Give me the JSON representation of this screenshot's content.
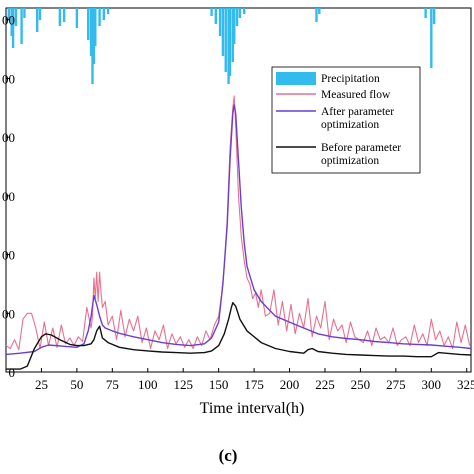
{
  "chart_data": {
    "type": "line",
    "panel_label": "(c)",
    "xlabel": "Time interval(h)",
    "xlim": [
      0,
      328
    ],
    "x_ticks": [
      25,
      50,
      75,
      100,
      125,
      150,
      175,
      200,
      225,
      250,
      275,
      300,
      325
    ],
    "ylim": [
      0,
      620
    ],
    "left_y_ticks": [
      {
        "value": 0,
        "label": "0"
      },
      {
        "value": 100,
        "label": "00"
      },
      {
        "value": 200,
        "label": "00"
      },
      {
        "value": 300,
        "label": "00"
      },
      {
        "value": 400,
        "label": "00"
      },
      {
        "value": 500,
        "label": "00"
      },
      {
        "value": 600,
        "label": "00"
      }
    ],
    "legend": {
      "placement": "upper-right",
      "entries": [
        {
          "series": "precipitation",
          "label": "Precipitation",
          "kind": "patch"
        },
        {
          "series": "measured",
          "label": "Measured flow",
          "kind": "line"
        },
        {
          "series": "after",
          "label": "After parameter optimization",
          "lines": [
            "After parameter",
            "optimization"
          ],
          "kind": "line"
        },
        {
          "series": "before",
          "label": "Before parameter optimization",
          "lines": [
            "Before parameter",
            "optimization"
          ],
          "kind": "line"
        }
      ]
    },
    "precipitation": {
      "name": "Precipitation",
      "color": "#33bbee",
      "note": "bars hang downward from top axis; values in mm (secondary axis, max 40)",
      "max": 40,
      "events": [
        [
          2,
          6
        ],
        [
          4,
          14
        ],
        [
          5,
          20
        ],
        [
          7,
          9
        ],
        [
          11,
          18
        ],
        [
          13,
          5
        ],
        [
          22,
          12
        ],
        [
          24,
          6
        ],
        [
          38,
          9
        ],
        [
          41,
          7
        ],
        [
          50,
          10
        ],
        [
          58,
          16
        ],
        [
          60,
          24
        ],
        [
          61,
          38
        ],
        [
          62,
          28
        ],
        [
          63,
          19
        ],
        [
          66,
          9
        ],
        [
          69,
          6
        ],
        [
          72,
          3
        ],
        [
          145,
          4
        ],
        [
          148,
          8
        ],
        [
          151,
          14
        ],
        [
          153,
          24
        ],
        [
          155,
          32
        ],
        [
          157,
          38
        ],
        [
          158,
          34
        ],
        [
          160,
          27
        ],
        [
          161,
          18
        ],
        [
          163,
          9
        ],
        [
          165,
          5
        ],
        [
          168,
          3
        ],
        [
          219,
          7
        ],
        [
          221,
          3
        ],
        [
          296,
          5
        ],
        [
          300,
          30
        ],
        [
          302,
          8
        ]
      ]
    },
    "series": [
      {
        "name": "Measured flow",
        "key": "measured",
        "color": "#e8708f",
        "x": [
          0,
          3,
          6,
          9,
          12,
          15,
          18,
          21,
          24,
          27,
          30,
          33,
          36,
          39,
          42,
          45,
          48,
          51,
          54,
          57,
          60,
          61,
          62,
          63,
          64,
          65,
          66,
          67,
          68,
          70,
          72,
          75,
          78,
          81,
          84,
          87,
          90,
          93,
          96,
          99,
          102,
          105,
          108,
          111,
          114,
          117,
          120,
          123,
          126,
          129,
          132,
          135,
          138,
          141,
          144,
          147,
          150,
          152,
          154,
          156,
          158,
          160,
          161,
          162,
          163,
          164,
          166,
          168,
          170,
          172,
          174,
          176,
          178,
          180,
          183,
          186,
          189,
          192,
          195,
          198,
          201,
          204,
          207,
          210,
          213,
          216,
          219,
          222,
          225,
          228,
          231,
          234,
          237,
          240,
          243,
          246,
          249,
          252,
          255,
          258,
          261,
          264,
          267,
          270,
          273,
          276,
          279,
          282,
          285,
          288,
          291,
          294,
          297,
          300,
          303,
          306,
          309,
          312,
          315,
          318,
          321,
          324,
          327
        ],
        "values": [
          45,
          40,
          55,
          38,
          90,
          100,
          100,
          75,
          40,
          85,
          45,
          75,
          42,
          80,
          48,
          58,
          45,
          60,
          52,
          110,
          75,
          95,
          160,
          125,
          170,
          120,
          170,
          135,
          110,
          120,
          80,
          95,
          55,
          105,
          60,
          90,
          70,
          95,
          50,
          75,
          40,
          70,
          55,
          80,
          40,
          65,
          48,
          60,
          42,
          55,
          40,
          60,
          45,
          70,
          55,
          80,
          95,
          130,
          180,
          260,
          380,
          450,
          470,
          420,
          360,
          300,
          230,
          190,
          160,
          150,
          125,
          135,
          110,
          140,
          95,
          100,
          140,
          80,
          120,
          70,
          115,
          65,
          100,
          75,
          125,
          60,
          95,
          75,
          120,
          55,
          90,
          70,
          80,
          50,
          85,
          60,
          55,
          50,
          70,
          45,
          75,
          55,
          60,
          50,
          75,
          45,
          55,
          60,
          45,
          80,
          50,
          65,
          45,
          90,
          55,
          70,
          45,
          60,
          40,
          85,
          50,
          80,
          45
        ]
      },
      {
        "name": "After parameter optimization",
        "key": "after",
        "color": "#6a3fd0",
        "x": [
          0,
          10,
          20,
          25,
          30,
          40,
          50,
          55,
          58,
          60,
          62,
          64,
          66,
          68,
          70,
          75,
          80,
          90,
          100,
          110,
          120,
          130,
          140,
          145,
          150,
          153,
          156,
          158,
          160,
          161,
          162,
          164,
          166,
          168,
          170,
          175,
          180,
          190,
          200,
          210,
          220,
          230,
          240,
          250,
          260,
          270,
          280,
          290,
          300,
          310,
          320,
          328
        ],
        "values": [
          30,
          32,
          35,
          42,
          46,
          44,
          42,
          48,
          70,
          95,
          130,
          115,
          95,
          80,
          75,
          70,
          66,
          60,
          55,
          50,
          47,
          45,
          48,
          58,
          85,
          150,
          250,
          360,
          440,
          455,
          440,
          360,
          280,
          220,
          180,
          140,
          120,
          95,
          85,
          75,
          65,
          60,
          57,
          55,
          52,
          50,
          48,
          47,
          46,
          44,
          42,
          40
        ]
      },
      {
        "name": "Before parameter optimization",
        "key": "before",
        "color": "#111111",
        "x": [
          0,
          10,
          15,
          20,
          25,
          28,
          32,
          38,
          45,
          50,
          55,
          60,
          62,
          64,
          66,
          68,
          72,
          80,
          90,
          100,
          110,
          120,
          130,
          140,
          145,
          150,
          154,
          157,
          159,
          160,
          162,
          165,
          170,
          180,
          190,
          200,
          210,
          213,
          216,
          220,
          230,
          240,
          250,
          260,
          270,
          280,
          290,
          300,
          305,
          310,
          320,
          328
        ],
        "values": [
          5,
          5,
          10,
          40,
          60,
          65,
          63,
          55,
          47,
          45,
          45,
          48,
          55,
          70,
          78,
          58,
          50,
          42,
          38,
          36,
          34,
          33,
          32,
          33,
          36,
          45,
          65,
          90,
          110,
          118,
          112,
          90,
          70,
          50,
          40,
          35,
          32,
          38,
          40,
          35,
          32,
          30,
          29,
          28,
          27,
          27,
          26,
          26,
          33,
          32,
          30,
          29
        ]
      }
    ]
  }
}
